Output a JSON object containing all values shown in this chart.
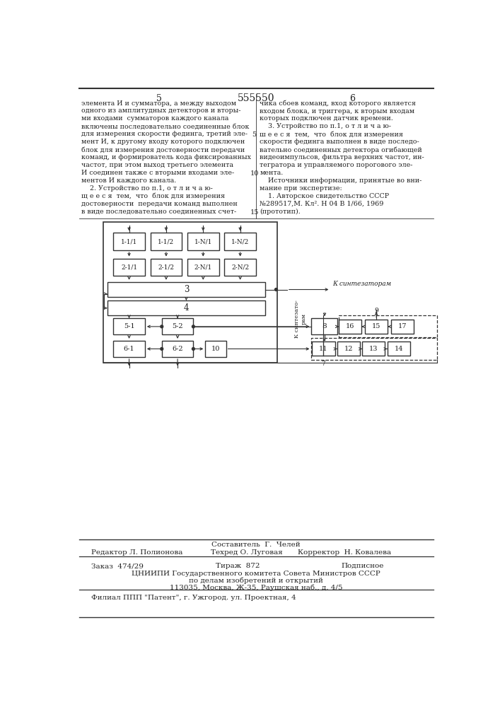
{
  "page_title": "555550",
  "col_left_num": "5",
  "col_right_num": "6",
  "footer_line1": "Составитель  Г.  Челей",
  "footer_line2_left": "Редактор Л. Полионова",
  "footer_line2_mid": "Техред О. Луговая",
  "footer_line2_right": "Корректор  Н. Ковалева",
  "footer_line3_left": "Заказ  474/29",
  "footer_line3_mid": "Тираж  872",
  "footer_line3_right": "Подписное",
  "footer_line4": "ЦНИИПИ Государственного комитета Совета Министров СССР",
  "footer_line5": "по делам изобретений и открытий",
  "footer_line6": "113035, Москва, Ж-35, Раушская наб., д. 4/5",
  "footer_line7": "Филиал ППП \"Патент\", г. Ужгород. ул. Проектная, 4",
  "bg_color": "#ffffff",
  "box_color": "#333333",
  "text_color": "#222222"
}
